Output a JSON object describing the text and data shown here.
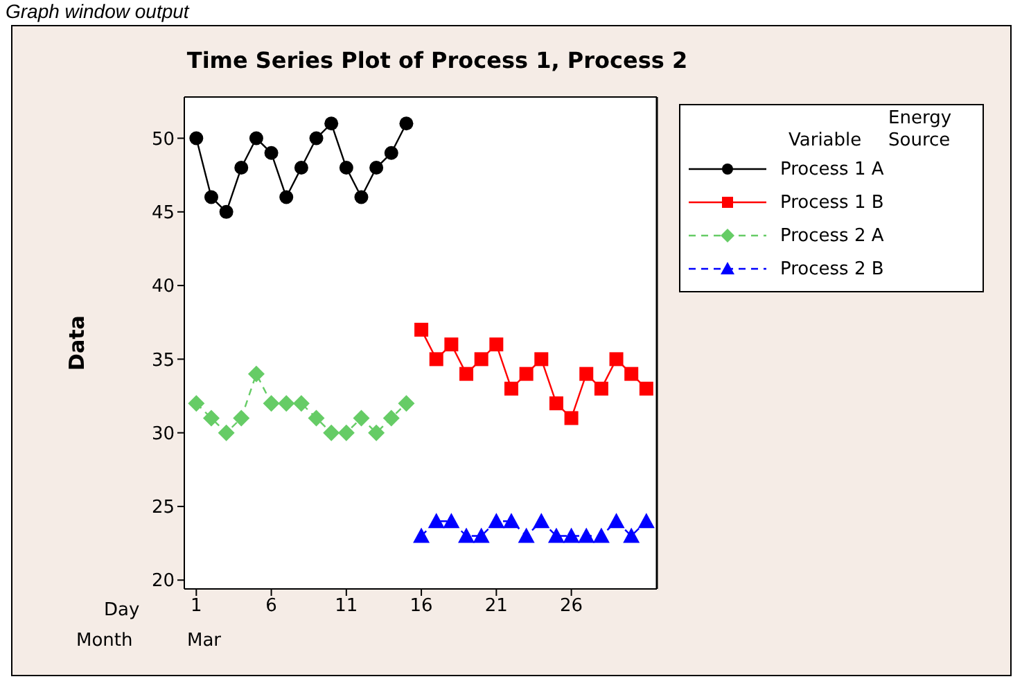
{
  "chart_data": {
    "type": "line",
    "title": "Time Series Plot of Process 1, Process 2",
    "ylabel": "Data",
    "legend_title": "Variable",
    "annotations": [
      "Graph window output",
      "Day",
      "Month",
      "Mar",
      "Energy Source"
    ],
    "xlim": [
      0.2,
      31.7
    ],
    "xticks": [
      1,
      6,
      11,
      16,
      21,
      26
    ],
    "ylim": [
      19.4,
      52.8
    ],
    "yticks": [
      20,
      25,
      30,
      35,
      40,
      45,
      50
    ],
    "legend": "top right",
    "series": [
      {
        "name": "Process 1 A",
        "color": "#000000",
        "marker": "circle",
        "line_style": "solid",
        "x": [
          1,
          2,
          3,
          4,
          5,
          6,
          7,
          8,
          9,
          10,
          11,
          12,
          13,
          14,
          15
        ],
        "values": [
          50,
          46,
          45,
          48,
          50,
          49,
          46,
          48,
          50,
          51,
          48,
          46,
          48,
          49,
          51
        ]
      },
      {
        "name": "Process 1 B",
        "color": "#ff0000",
        "marker": "square",
        "line_style": "solid",
        "x": [
          16,
          17,
          18,
          19,
          20,
          21,
          22,
          23,
          24,
          25,
          26,
          27,
          28,
          29,
          30,
          31
        ],
        "values": [
          37,
          35,
          36,
          34,
          35,
          36,
          33,
          34,
          35,
          32,
          31,
          34,
          33,
          35,
          34,
          33
        ]
      },
      {
        "name": "Process 2 A",
        "color": "#66cc66",
        "marker": "diamond",
        "line_style": "dashed",
        "x": [
          1,
          2,
          3,
          4,
          5,
          6,
          7,
          8,
          9,
          10,
          11,
          12,
          13,
          14,
          15
        ],
        "values": [
          32,
          31,
          30,
          31,
          34,
          32,
          32,
          32,
          31,
          30,
          30,
          31,
          30,
          31,
          32
        ]
      },
      {
        "name": "Process 2 B",
        "color": "#0000ff",
        "marker": "triangle",
        "line_style": "dashed",
        "x": [
          16,
          17,
          18,
          19,
          20,
          21,
          22,
          23,
          24,
          25,
          26,
          27,
          28,
          29,
          30,
          31
        ],
        "values": [
          23,
          24,
          24,
          23,
          23,
          24,
          24,
          23,
          24,
          23,
          23,
          23,
          23,
          24,
          23,
          24
        ]
      }
    ]
  }
}
